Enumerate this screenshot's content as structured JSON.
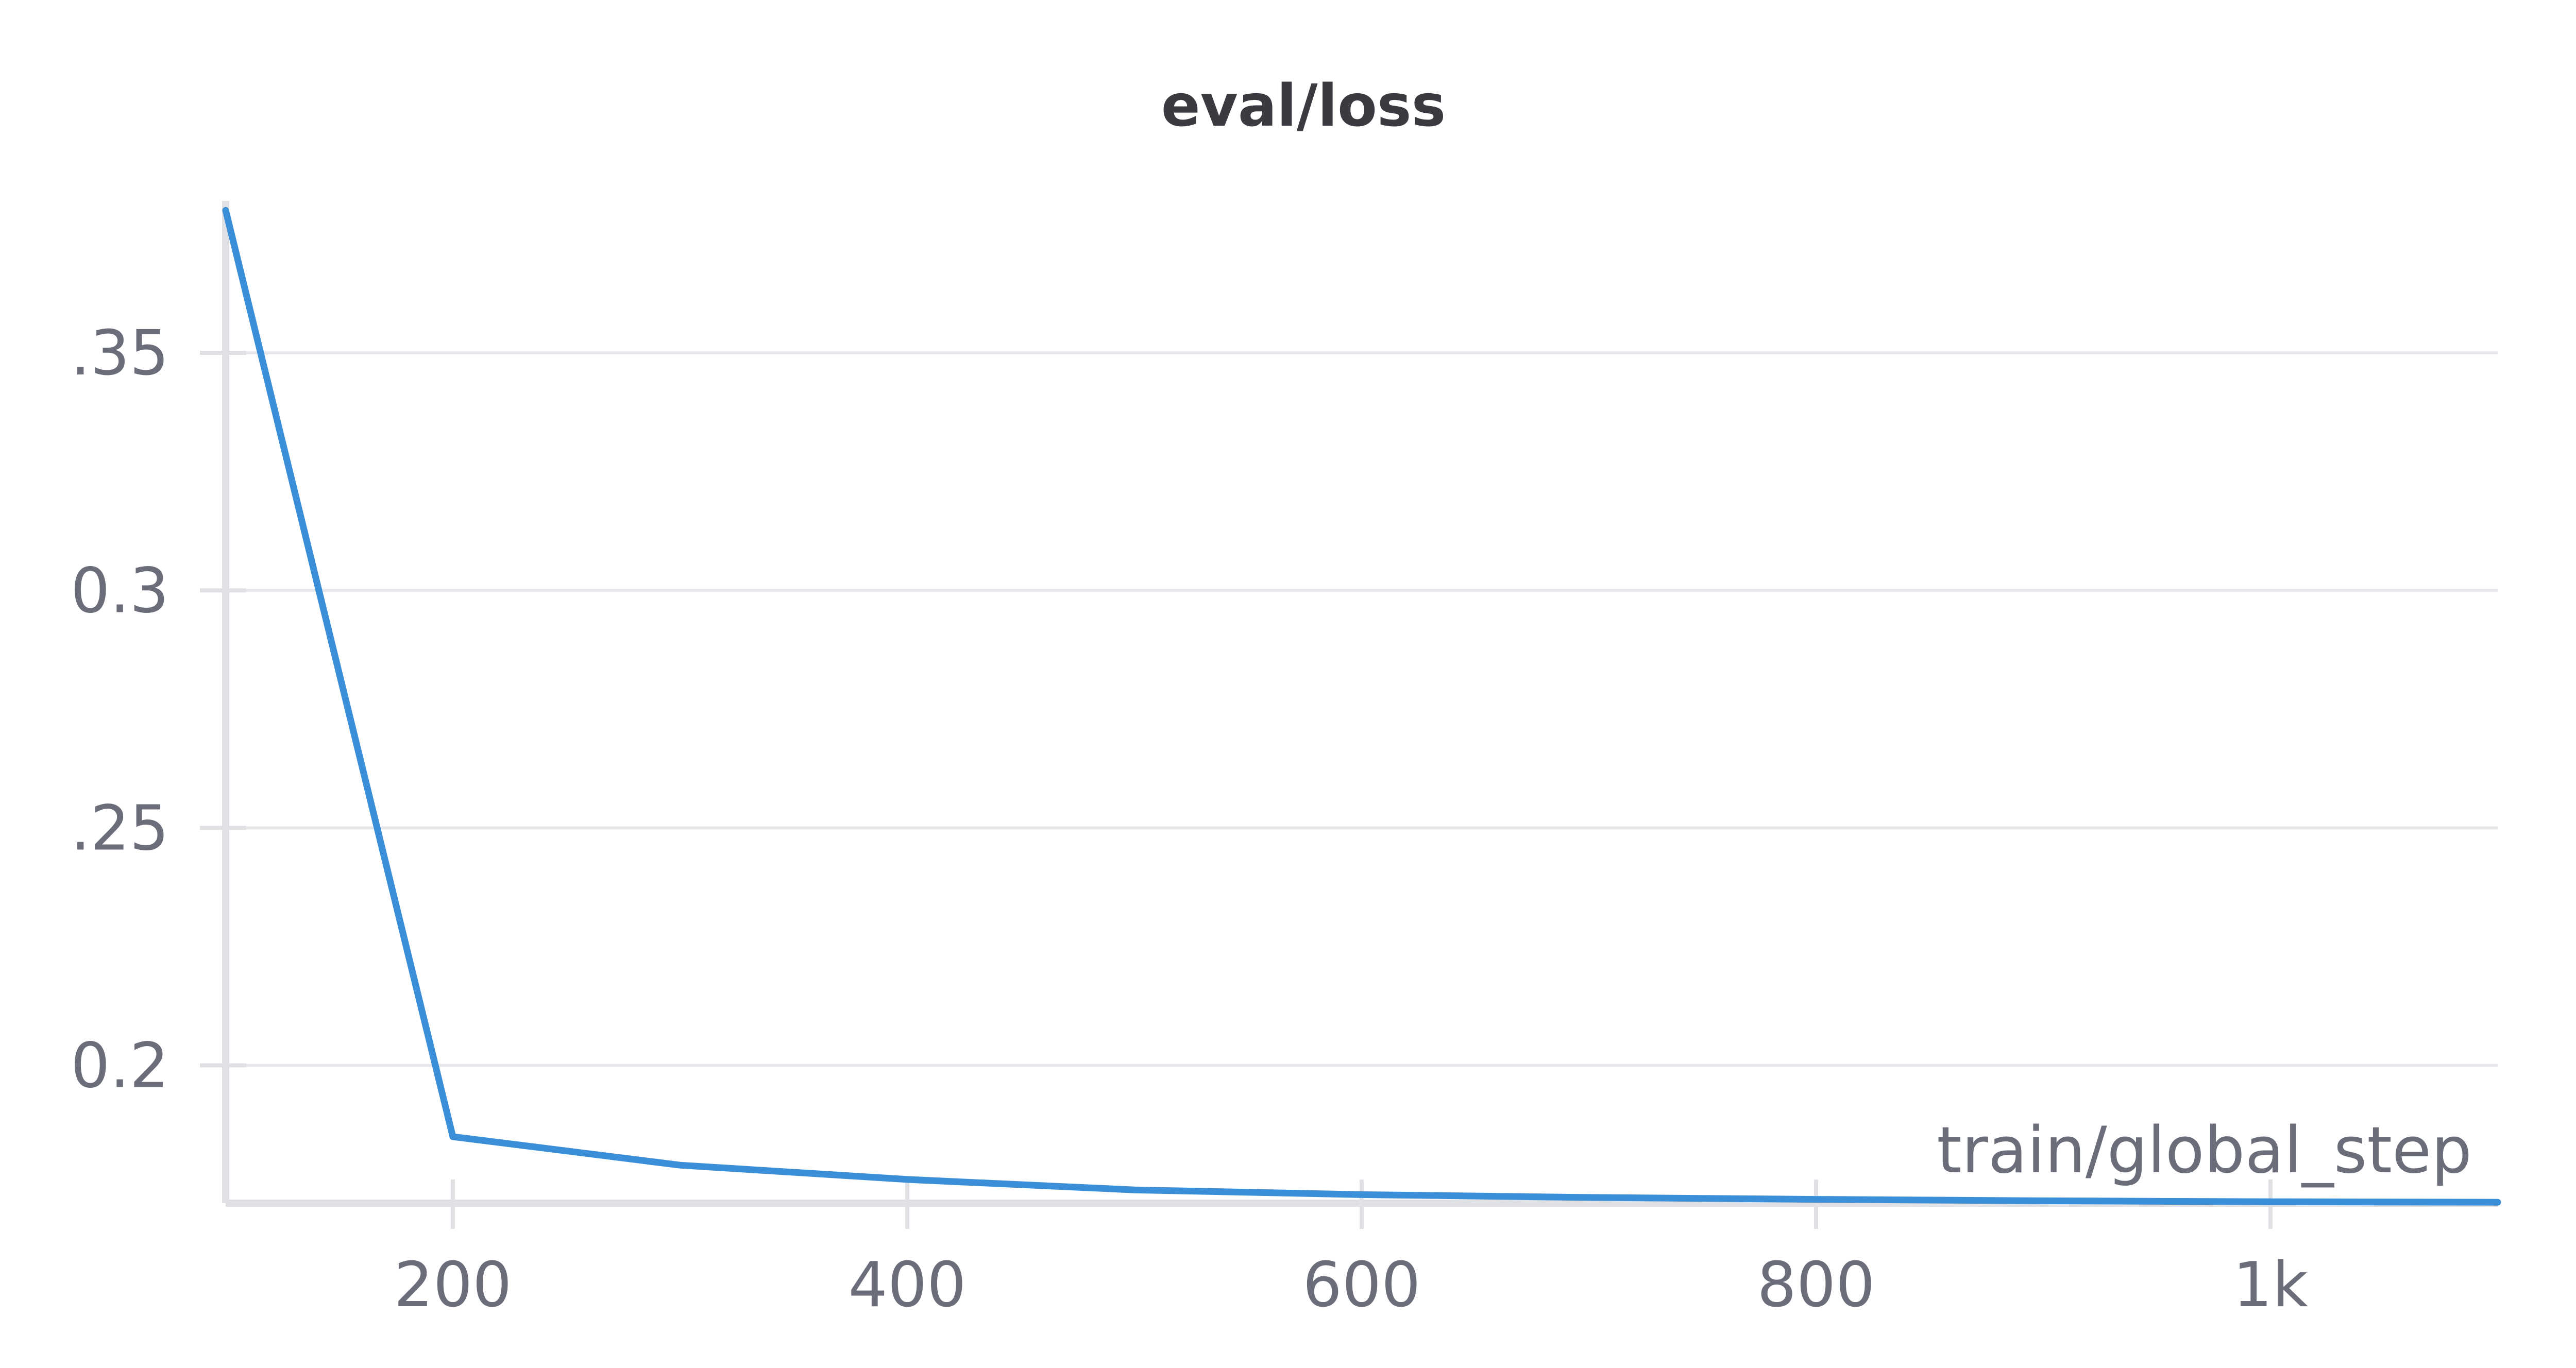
{
  "chart_data": {
    "type": "line",
    "title": "eval/loss",
    "xlabel": "train/global_step",
    "ylabel": "",
    "xlim": [
      100,
      1100
    ],
    "ylim": [
      0.171,
      0.382
    ],
    "x_ticks": [
      200,
      400,
      600,
      800,
      1000
    ],
    "x_tick_labels": [
      "200",
      "400",
      "600",
      "800",
      "1k"
    ],
    "y_ticks": [
      0.2,
      0.25,
      0.3,
      0.35
    ],
    "y_tick_labels": [
      "0.2",
      ".25",
      "0.3",
      ".35"
    ],
    "grid": true,
    "series": [
      {
        "color": "#3b8fd8",
        "x": [
          100,
          200,
          300,
          400,
          500,
          600,
          700,
          800,
          900,
          1000,
          1100
        ],
        "y": [
          0.38,
          0.185,
          0.179,
          0.176,
          0.1738,
          0.1728,
          0.1722,
          0.1718,
          0.1715,
          0.1713,
          0.1712
        ]
      }
    ]
  }
}
